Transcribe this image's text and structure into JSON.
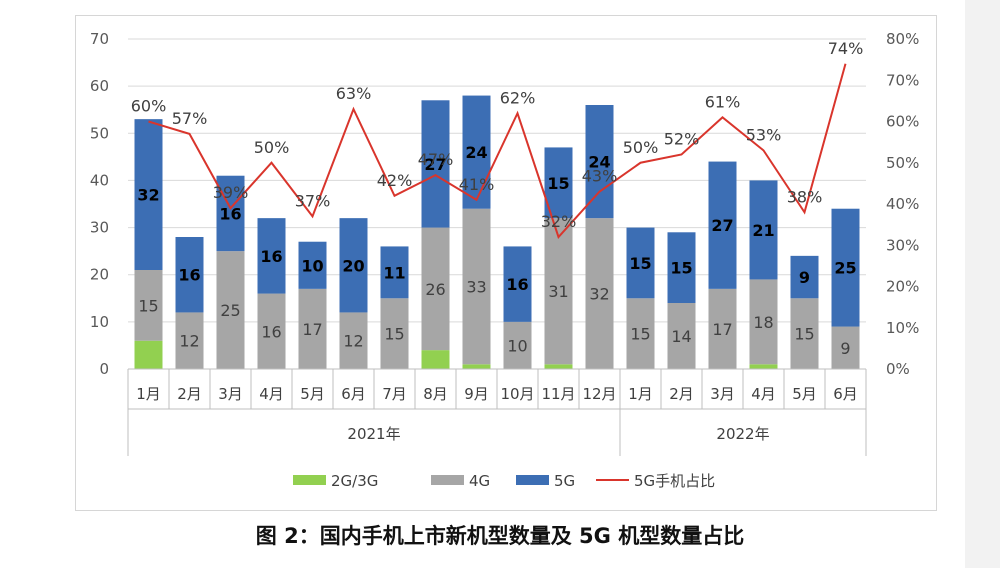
{
  "caption": "图 2：国内手机上市新机型数量及 5G 机型数量占比",
  "chart_data": {
    "type": "bar",
    "stacked": true,
    "categories": [
      "1月",
      "2月",
      "3月",
      "4月",
      "5月",
      "6月",
      "7月",
      "8月",
      "9月",
      "10月",
      "11月",
      "12月",
      "1月",
      "2月",
      "3月",
      "4月",
      "5月",
      "6月"
    ],
    "category_groups": [
      {
        "label": "2021年",
        "count": 12
      },
      {
        "label": "2022年",
        "count": 6
      }
    ],
    "series": [
      {
        "name": "2G/3G",
        "color": "#92d050",
        "values": [
          6,
          0,
          0,
          0,
          0,
          0,
          0,
          4,
          1,
          0,
          1,
          0,
          0,
          0,
          0,
          1,
          0,
          0
        ]
      },
      {
        "name": "4G",
        "color": "#a6a6a6",
        "values": [
          15,
          12,
          25,
          16,
          17,
          12,
          15,
          26,
          33,
          10,
          31,
          32,
          15,
          14,
          17,
          18,
          15,
          9
        ],
        "labels": [
          "15",
          "12",
          "25",
          "16",
          "17",
          "12",
          "15",
          "26",
          "33",
          "10",
          "31",
          "32",
          "15",
          "14",
          "17",
          "18",
          "15",
          "9"
        ]
      },
      {
        "name": "5G",
        "color": "#3c6eb4",
        "values": [
          32,
          16,
          16,
          16,
          10,
          20,
          11,
          27,
          24,
          16,
          15,
          24,
          15,
          15,
          27,
          21,
          9,
          25
        ],
        "labels": [
          "32",
          "16",
          "16",
          "16",
          "10",
          "20",
          "11",
          "27",
          "24",
          "16",
          "15",
          "24",
          "15",
          "15",
          "27",
          "21",
          "9",
          "25"
        ]
      }
    ],
    "line_series": {
      "name": "5G手机占比",
      "color": "#d9352c",
      "axis": "right",
      "values": [
        60,
        57,
        39,
        50,
        37,
        63,
        42,
        47,
        41,
        62,
        32,
        43,
        50,
        52,
        61,
        53,
        38,
        74
      ],
      "labels": [
        "60%",
        "57%",
        "39%",
        "50%",
        "37%",
        "63%",
        "42%",
        "47%",
        "41%",
        "62%",
        "32%",
        "43%",
        "50%",
        "52%",
        "61%",
        "53%",
        "38%",
        "74%"
      ]
    },
    "y_left": {
      "min": 0,
      "max": 70,
      "ticks": [
        "0",
        "10",
        "20",
        "30",
        "40",
        "50",
        "60",
        "70"
      ]
    },
    "y_right": {
      "min": 0,
      "max": 80,
      "ticks": [
        "0%",
        "10%",
        "20%",
        "30%",
        "40%",
        "50%",
        "60%",
        "70%",
        "80%"
      ]
    },
    "grid": true,
    "legend_position": "bottom"
  }
}
